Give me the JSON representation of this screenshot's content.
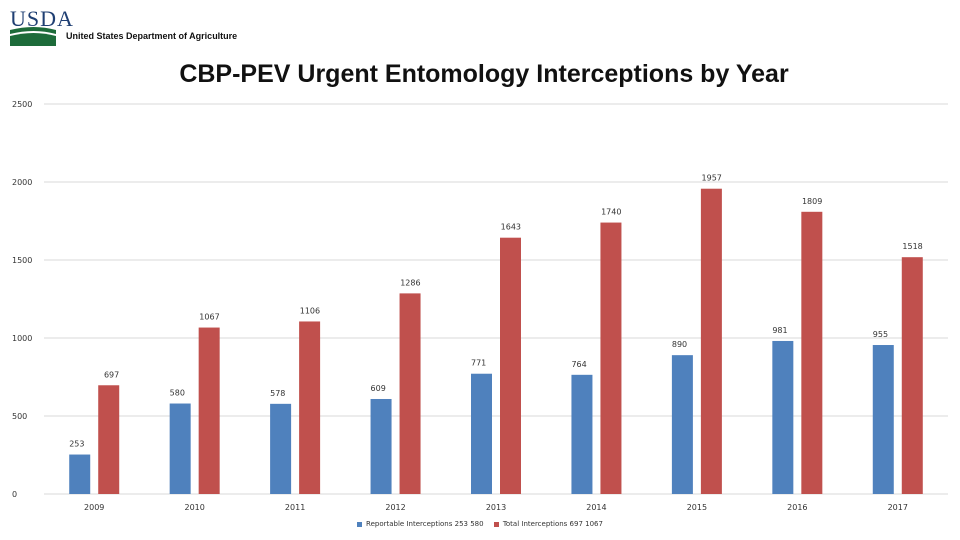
{
  "brand": {
    "logo_text": "USDA",
    "department": "United States Department of Agriculture"
  },
  "colors": {
    "series_reportable": "#4f81bd",
    "series_total": "#c0504d",
    "gridline": "#d9d9d9",
    "text": "#333333",
    "logo_blue": "#1f3f73",
    "logo_green": "#1d6b3a"
  },
  "chart_data": {
    "type": "bar",
    "title": "CBP-PEV Urgent Entomology Interceptions by Year",
    "categories": [
      "2009",
      "2010",
      "2011",
      "2012",
      "2013",
      "2014",
      "2015",
      "2016",
      "2017"
    ],
    "series": [
      {
        "values": [
          253,
          580,
          578,
          609,
          771,
          764,
          890,
          981,
          955
        ]
      },
      {
        "values": [
          697,
          1067,
          1106,
          1286,
          1643,
          1740,
          1957,
          1809,
          1518
        ]
      }
    ],
    "ylim": [
      0,
      2500
    ],
    "yticks": [
      "0",
      "500",
      "1000",
      "1500",
      "2000",
      "2500"
    ],
    "grid": true,
    "legend_position": "bottom",
    "legend": [
      "Reportable Interceptions 253 580",
      "Total Interceptions 697 1067"
    ]
  }
}
